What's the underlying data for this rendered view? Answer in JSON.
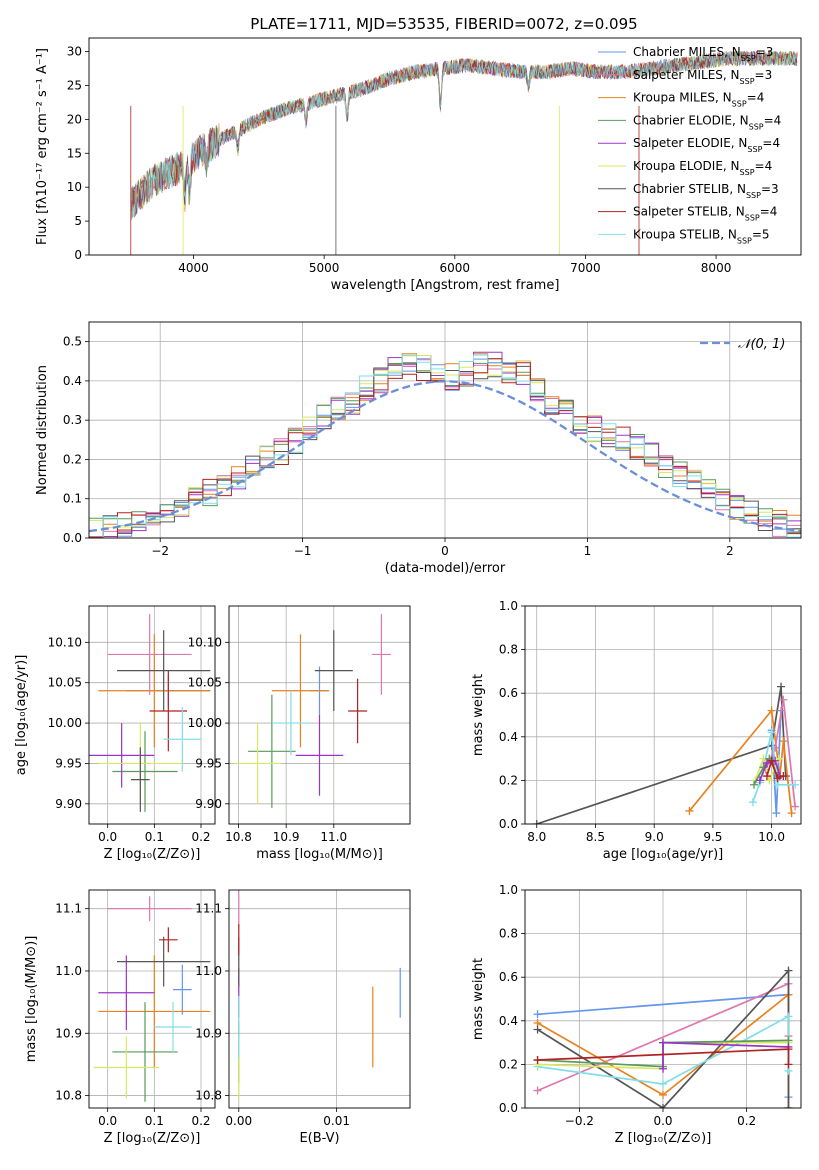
{
  "chart_data": [
    {
      "id": "spectrum",
      "type": "line",
      "title": "PLATE=1711, MJD=53535, FIBERID=0072, z=0.095",
      "xlabel": "wavelength [Angstrom, rest frame]",
      "ylabel": "Flux [fλ10⁻¹⁷ erg cm⁻² s⁻¹ A⁻¹]",
      "xlim": [
        3200,
        8650
      ],
      "ylim": [
        0,
        32
      ],
      "xticks": [
        4000,
        5000,
        6000,
        7000,
        8000
      ],
      "yticks": [
        0,
        5,
        10,
        15,
        20,
        25,
        30
      ],
      "grid": false,
      "legend_position": "top-right",
      "continuum": {
        "x": [
          3500,
          3700,
          3900,
          4100,
          4300,
          4500,
          4700,
          4900,
          5100,
          5300,
          5500,
          5700,
          5900,
          6100,
          6300,
          6500,
          6700,
          6900,
          7100,
          7300,
          7500,
          7700,
          7900,
          8100,
          8300,
          8600
        ],
        "y": [
          7,
          11,
          13,
          16,
          18,
          20,
          21.5,
          22.5,
          23.5,
          24.5,
          26,
          27,
          27.5,
          28,
          27.5,
          27,
          27,
          27.5,
          27,
          27,
          27.5,
          28,
          28.5,
          29,
          29,
          29
        ]
      },
      "series": [
        {
          "name": "Chabrier MILES, N_SSP=3",
          "color": "#6495ED"
        },
        {
          "name": "Salpeter MILES, N_SSP=3",
          "color": "#DE77AE"
        },
        {
          "name": "Kroupa MILES, N_SSP=4",
          "color": "#E8821E"
        },
        {
          "name": "Chabrier ELODIE, N_SSP=4",
          "color": "#5A9A5A"
        },
        {
          "name": "Salpeter ELODIE, N_SSP=4",
          "color": "#9B35C8"
        },
        {
          "name": "Kroupa ELODIE, N_SSP=4",
          "color": "#D8E860"
        },
        {
          "name": "Chabrier STELIB, N_SSP=3",
          "color": "#555555"
        },
        {
          "name": "Salpeter STELIB, N_SSP=4",
          "color": "#B22222"
        },
        {
          "name": "Kroupa STELIB, N_SSP=5",
          "color": "#80DEEA"
        }
      ],
      "legend_labels": [
        {
          "main": "Chabrier MILES, N",
          "sub": "SSP",
          "tail": "=3"
        },
        {
          "main": "Salpeter MILES, N",
          "sub": "SSP",
          "tail": "=3"
        },
        {
          "main": "Kroupa MILES, N",
          "sub": "SSP",
          "tail": "=4"
        },
        {
          "main": "Chabrier ELODIE, N",
          "sub": "SSP",
          "tail": "=4"
        },
        {
          "main": "Salpeter ELODIE, N",
          "sub": "SSP",
          "tail": "=4"
        },
        {
          "main": "Kroupa ELODIE, N",
          "sub": "SSP",
          "tail": "=4"
        },
        {
          "main": "Chabrier STELIB, N",
          "sub": "SSP",
          "tail": "=3"
        },
        {
          "main": "Salpeter STELIB, N",
          "sub": "SSP",
          "tail": "=4"
        },
        {
          "main": "Kroupa STELIB, N",
          "sub": "SSP",
          "tail": "=5"
        }
      ]
    },
    {
      "id": "residual_hist",
      "type": "bar",
      "xlabel": "(data-model)/error",
      "ylabel": "Normed distribution",
      "xlim": [
        -2.5,
        2.5
      ],
      "ylim": [
        0,
        0.55
      ],
      "xticks": [
        -2,
        -1,
        0,
        1,
        2
      ],
      "xtick_labels": [
        "−2",
        "−1",
        "0",
        "1",
        "2"
      ],
      "yticks": [
        0.0,
        0.1,
        0.2,
        0.3,
        0.4,
        0.5
      ],
      "ytick_labels": [
        "0.0",
        "0.1",
        "0.2",
        "0.3",
        "0.4",
        "0.5"
      ],
      "grid": true,
      "legend_position": "top-right",
      "legend_label": "𝒩(0, 1)",
      "reference_curve": {
        "name": "N(0,1)",
        "color": "#6A8FD8",
        "style": "dashed"
      },
      "bin_width": 0.1,
      "bin_start": -2.5,
      "envelope": [
        0.018,
        0.022,
        0.03,
        0.045,
        0.055,
        0.065,
        0.085,
        0.1,
        0.115,
        0.13,
        0.155,
        0.18,
        0.2,
        0.22,
        0.25,
        0.28,
        0.31,
        0.33,
        0.345,
        0.38,
        0.4,
        0.43,
        0.44,
        0.43,
        0.42,
        0.41,
        0.42,
        0.44,
        0.44,
        0.43,
        0.42,
        0.38,
        0.35,
        0.32,
        0.3,
        0.28,
        0.26,
        0.25,
        0.235,
        0.21,
        0.185,
        0.16,
        0.14,
        0.12,
        0.1,
        0.08,
        0.065,
        0.05,
        0.035,
        0.025
      ]
    },
    {
      "id": "age_vs_Z",
      "type": "scatter",
      "xlabel": "Z [log₁₀(Z/Z⊙)]",
      "ylabel": "age  [log₁₀(age/yr)]",
      "xlim": [
        -0.04,
        0.23
      ],
      "ylim": [
        9.875,
        10.145
      ],
      "xticks": [
        0.0,
        0.1,
        0.2
      ],
      "xtick_labels": [
        "0.0",
        "0.1",
        "0.2"
      ],
      "yticks": [
        9.9,
        9.95,
        10.0,
        10.05,
        10.1
      ],
      "ytick_labels": [
        "9.90",
        "9.95",
        "10.00",
        "10.05",
        "10.10"
      ],
      "grid": true,
      "points": [
        {
          "x": 0.13,
          "y": 10.04,
          "xerr": 0.09,
          "yerr": 0.02,
          "color": "#6495ED"
        },
        {
          "x": 0.09,
          "y": 10.085,
          "xerr": 0.09,
          "yerr": 0.05,
          "color": "#DE77AE"
        },
        {
          "x": 0.1,
          "y": 10.04,
          "xerr": 0.12,
          "yerr": 0.07,
          "color": "#E8821E"
        },
        {
          "x": 0.08,
          "y": 9.94,
          "xerr": 0.07,
          "yerr": 0.05,
          "color": "#5A9A5A"
        },
        {
          "x": 0.03,
          "y": 9.96,
          "xerr": 0.07,
          "yerr": 0.04,
          "color": "#9B35C8"
        },
        {
          "x": 0.07,
          "y": 9.95,
          "xerr": 0.09,
          "yerr": 0.05,
          "color": "#D8E860"
        },
        {
          "x": 0.12,
          "y": 10.065,
          "xerr": 0.1,
          "yerr": 0.05,
          "color": "#555555"
        },
        {
          "x": 0.13,
          "y": 10.015,
          "xerr": 0.04,
          "yerr": 0.05,
          "color": "#B22222"
        },
        {
          "x": 0.16,
          "y": 9.98,
          "xerr": 0.04,
          "yerr": 0.04,
          "color": "#80DEEA"
        },
        {
          "x": 0.07,
          "y": 9.93,
          "xerr": 0.02,
          "yerr": 0.04,
          "color": "#555555"
        }
      ]
    },
    {
      "id": "age_vs_mass",
      "type": "scatter",
      "xlabel": "mass [log₁₀(M/M⊙)]",
      "ylabel": "",
      "xlim": [
        10.78,
        11.16
      ],
      "ylim": [
        9.875,
        10.145
      ],
      "xticks": [
        10.8,
        10.9,
        11.0
      ],
      "xtick_labels": [
        "10.8",
        "10.9",
        "11.0"
      ],
      "yticks": [
        9.9,
        9.95,
        10.0,
        10.05,
        10.1
      ],
      "ytick_labels": [
        "9.90",
        "9.95",
        "10.00",
        "10.05",
        "10.10"
      ],
      "grid": true,
      "points": [
        {
          "x": 10.97,
          "y": 10.04,
          "xerr": 0.02,
          "yerr": 0.03,
          "color": "#6495ED"
        },
        {
          "x": 11.1,
          "y": 10.085,
          "xerr": 0.02,
          "yerr": 0.05,
          "color": "#DE77AE"
        },
        {
          "x": 10.93,
          "y": 10.04,
          "xerr": 0.06,
          "yerr": 0.07,
          "color": "#E8821E"
        },
        {
          "x": 10.87,
          "y": 9.965,
          "xerr": 0.05,
          "yerr": 0.07,
          "color": "#5A9A5A"
        },
        {
          "x": 10.97,
          "y": 9.96,
          "xerr": 0.05,
          "yerr": 0.05,
          "color": "#9B35C8"
        },
        {
          "x": 10.84,
          "y": 9.95,
          "xerr": 0.05,
          "yerr": 0.05,
          "color": "#D8E860"
        },
        {
          "x": 11.0,
          "y": 10.065,
          "xerr": 0.04,
          "yerr": 0.05,
          "color": "#555555"
        },
        {
          "x": 11.05,
          "y": 10.015,
          "xerr": 0.02,
          "yerr": 0.04,
          "color": "#B22222"
        },
        {
          "x": 10.91,
          "y": 10.0,
          "xerr": 0.04,
          "yerr": 0.04,
          "color": "#80DEEA"
        }
      ]
    },
    {
      "id": "massweight_vs_age",
      "type": "line",
      "xlabel": "age  [log₁₀(age/yr)]",
      "ylabel": "mass weight",
      "xlim": [
        7.9,
        10.25
      ],
      "ylim": [
        0,
        1.0
      ],
      "xticks": [
        8.0,
        8.5,
        9.0,
        9.5,
        10.0
      ],
      "xtick_labels": [
        "8.0",
        "8.5",
        "9.0",
        "9.5",
        "10.0"
      ],
      "yticks": [
        0.0,
        0.2,
        0.4,
        0.6,
        0.8,
        1.0
      ],
      "ytick_labels": [
        "0.0",
        "0.2",
        "0.4",
        "0.6",
        "0.8",
        "1.0"
      ],
      "grid": true,
      "series": [
        {
          "color": "#555555",
          "x": [
            8.0,
            10.0,
            10.08,
            10.12
          ],
          "y": [
            0.0,
            0.36,
            0.63,
            0.22
          ]
        },
        {
          "color": "#E8821E",
          "x": [
            9.3,
            10.0,
            10.07,
            10.1,
            10.17
          ],
          "y": [
            0.06,
            0.52,
            0.22,
            0.38,
            0.05
          ]
        },
        {
          "color": "#6495ED",
          "x": [
            10.0,
            10.04,
            10.08
          ],
          "y": [
            0.43,
            0.05,
            0.52
          ]
        },
        {
          "color": "#DE77AE",
          "x": [
            9.95,
            10.03,
            10.1,
            10.2
          ],
          "y": [
            0.25,
            0.35,
            0.57,
            0.08
          ]
        },
        {
          "color": "#80DEEA",
          "x": [
            9.84,
            9.9,
            10.0,
            10.05,
            10.2
          ],
          "y": [
            0.1,
            0.19,
            0.42,
            0.18,
            0.18
          ]
        },
        {
          "color": "#D8E860",
          "x": [
            9.86,
            9.93,
            9.98,
            10.06
          ],
          "y": [
            0.2,
            0.3,
            0.2,
            0.3
          ]
        },
        {
          "color": "#5A9A5A",
          "x": [
            9.85,
            9.93,
            9.98,
            10.05
          ],
          "y": [
            0.18,
            0.26,
            0.3,
            0.22
          ]
        },
        {
          "color": "#9B35C8",
          "x": [
            9.9,
            9.96,
            10.03,
            10.07
          ],
          "y": [
            0.2,
            0.28,
            0.29,
            0.22
          ]
        },
        {
          "color": "#B22222",
          "x": [
            9.96,
            10.0,
            10.05,
            10.1
          ],
          "y": [
            0.22,
            0.29,
            0.21,
            0.22
          ]
        }
      ]
    },
    {
      "id": "mass_vs_Z",
      "type": "scatter",
      "xlabel": "Z [log₁₀(Z/Z⊙)]",
      "ylabel": "mass [log₁₀(M/M⊙)]",
      "xlim": [
        -0.04,
        0.23
      ],
      "ylim": [
        10.78,
        11.13
      ],
      "xticks": [
        0.0,
        0.1,
        0.2
      ],
      "xtick_labels": [
        "0.0",
        "0.1",
        "0.2"
      ],
      "yticks": [
        10.8,
        10.9,
        11.0,
        11.1
      ],
      "ytick_labels": [
        "10.8",
        "10.9",
        "11.0",
        "11.1"
      ],
      "grid": true,
      "points": [
        {
          "x": 0.16,
          "y": 10.97,
          "xerr": 0.02,
          "yerr": 0.04,
          "color": "#6495ED"
        },
        {
          "x": 0.09,
          "y": 11.1,
          "xerr": 0.09,
          "yerr": 0.02,
          "color": "#DE77AE"
        },
        {
          "x": 0.1,
          "y": 10.935,
          "xerr": 0.12,
          "yerr": 0.09,
          "color": "#E8821E"
        },
        {
          "x": 0.08,
          "y": 10.87,
          "xerr": 0.07,
          "yerr": 0.08,
          "color": "#5A9A5A"
        },
        {
          "x": 0.04,
          "y": 10.965,
          "xerr": 0.06,
          "yerr": 0.06,
          "color": "#9B35C8"
        },
        {
          "x": 0.04,
          "y": 10.845,
          "xerr": 0.07,
          "yerr": 0.05,
          "color": "#D8E860"
        },
        {
          "x": 0.12,
          "y": 11.015,
          "xerr": 0.1,
          "yerr": 0.04,
          "color": "#555555"
        },
        {
          "x": 0.13,
          "y": 11.05,
          "xerr": 0.02,
          "yerr": 0.02,
          "color": "#B22222"
        },
        {
          "x": 0.14,
          "y": 10.91,
          "xerr": 0.04,
          "yerr": 0.04,
          "color": "#80DEEA"
        }
      ]
    },
    {
      "id": "mass_vs_EBV",
      "type": "scatter",
      "xlabel": "E(B-V)",
      "ylabel": "",
      "xlim": [
        -0.001,
        0.0175
      ],
      "ylim": [
        10.78,
        11.13
      ],
      "xticks": [
        0.0,
        0.01
      ],
      "xtick_labels": [
        "0.00",
        "0.01"
      ],
      "yticks": [
        10.8,
        10.9,
        11.0,
        11.1
      ],
      "ytick_labels": [
        "10.8",
        "10.9",
        "11.0",
        "11.1"
      ],
      "grid": true,
      "points": [
        {
          "x": 0.0165,
          "y": 10.965,
          "xerr": 0.0,
          "yerr": 0.04,
          "color": "#6495ED"
        },
        {
          "x": 0.0,
          "y": 11.1,
          "xerr": 0.0,
          "yerr": 0.03,
          "color": "#DE77AE"
        },
        {
          "x": 0.0137,
          "y": 10.91,
          "xerr": 0.0,
          "yerr": 0.065,
          "color": "#E8821E"
        },
        {
          "x": 0.0,
          "y": 10.87,
          "xerr": 0.0,
          "yerr": 0.05,
          "color": "#5A9A5A"
        },
        {
          "x": 0.0,
          "y": 10.965,
          "xerr": 0.0,
          "yerr": 0.04,
          "color": "#9B35C8"
        },
        {
          "x": 0.0,
          "y": 10.845,
          "xerr": 0.0,
          "yerr": 0.05,
          "color": "#D8E860"
        },
        {
          "x": 0.0,
          "y": 11.015,
          "xerr": 0.0,
          "yerr": 0.04,
          "color": "#555555"
        },
        {
          "x": 0.0,
          "y": 11.05,
          "xerr": 0.0,
          "yerr": 0.025,
          "color": "#B22222"
        },
        {
          "x": 0.0,
          "y": 10.91,
          "xerr": 0.0,
          "yerr": 0.05,
          "color": "#80DEEA"
        }
      ]
    },
    {
      "id": "massweight_vs_Z",
      "type": "line",
      "xlabel": "Z [log₁₀(Z/Z⊙)]",
      "ylabel": "mass weight",
      "xlim": [
        -0.33,
        0.33
      ],
      "ylim": [
        0,
        1.0
      ],
      "xticks": [
        -0.2,
        0.0,
        0.2
      ],
      "xtick_labels": [
        "−0.2",
        "0.0",
        "0.2"
      ],
      "yticks": [
        0.0,
        0.2,
        0.4,
        0.6,
        0.8,
        1.0
      ],
      "ytick_labels": [
        "0.0",
        "0.2",
        "0.4",
        "0.6",
        "0.8",
        "1.0"
      ],
      "grid": true,
      "series": [
        {
          "color": "#6495ED",
          "x": [
            -0.3,
            0.3,
            0.3
          ],
          "y": [
            0.43,
            0.52,
            0.05
          ]
        },
        {
          "color": "#DE77AE",
          "x": [
            -0.3,
            0.3,
            0.3
          ],
          "y": [
            0.08,
            0.57,
            0.33
          ]
        },
        {
          "color": "#E8821E",
          "x": [
            -0.3,
            0.0,
            0.3,
            0.3
          ],
          "y": [
            0.39,
            0.06,
            0.52,
            0.0
          ]
        },
        {
          "color": "#555555",
          "x": [
            -0.3,
            0.0,
            0.3,
            0.3
          ],
          "y": [
            0.36,
            0.0,
            0.63,
            0.0
          ]
        },
        {
          "color": "#80DEEA",
          "x": [
            -0.3,
            0.0,
            0.3,
            0.3
          ],
          "y": [
            0.19,
            0.11,
            0.42,
            0.17
          ]
        },
        {
          "color": "#D8E860",
          "x": [
            -0.3,
            0.0,
            0.0,
            0.3
          ],
          "y": [
            0.2,
            0.18,
            0.3,
            0.3
          ]
        },
        {
          "color": "#5A9A5A",
          "x": [
            -0.3,
            0.0,
            0.0,
            0.3
          ],
          "y": [
            0.22,
            0.19,
            0.3,
            0.31
          ]
        },
        {
          "color": "#9B35C8",
          "x": [
            0.0,
            0.0,
            0.3
          ],
          "y": [
            0.18,
            0.3,
            0.28
          ]
        },
        {
          "color": "#B22222",
          "x": [
            -0.3,
            0.3,
            0.3
          ],
          "y": [
            0.22,
            0.27,
            0.2
          ]
        }
      ]
    }
  ]
}
